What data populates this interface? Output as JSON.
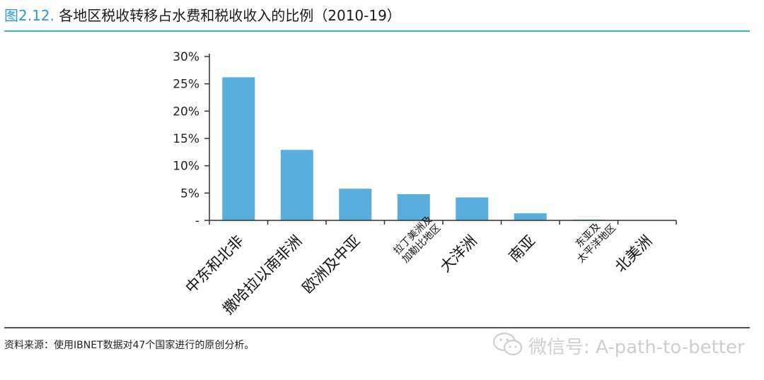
{
  "title": {
    "number": "图2.12.",
    "text": " 各地区税收转移占水费和税收收入的比例（2010-19）"
  },
  "source": "资料来源：使用IBNET数据对47个国家进行的原创分析。",
  "watermark": "微信号: A-path-to-better",
  "colors": {
    "bar": "#5aaede",
    "title_number": "#2a9bd6",
    "rule": "#41a9dd",
    "axis": "#333333"
  },
  "chart_data": {
    "type": "bar",
    "title": "各地区税收转移占水费和税收收入的比例（2010-19）",
    "categories": [
      "中东和北非",
      "撒哈拉以南非洲",
      "欧洲及中亚",
      "拉丁美洲及\n加勒比地区",
      "大洋洲",
      "南亚",
      "东亚及\n太平洋地区",
      "北美洲"
    ],
    "values": [
      26.2,
      12.9,
      5.8,
      4.8,
      4.2,
      1.3,
      0.15,
      0
    ],
    "ylim": [
      0,
      30
    ],
    "yticks": [
      0,
      5,
      10,
      15,
      20,
      25,
      30
    ],
    "ytick_labels": [
      "-",
      "5%",
      "10%",
      "15%",
      "20%",
      "25%",
      "30%"
    ],
    "grid": false,
    "xlabel": "",
    "ylabel": ""
  }
}
